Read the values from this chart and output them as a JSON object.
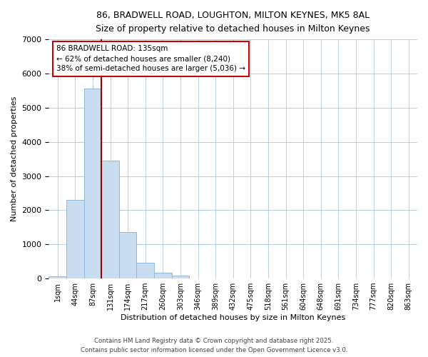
{
  "title_line1": "86, BRADWELL ROAD, LOUGHTON, MILTON KEYNES, MK5 8AL",
  "title_line2": "Size of property relative to detached houses in Milton Keynes",
  "xlabel": "Distribution of detached houses by size in Milton Keynes",
  "ylabel": "Number of detached properties",
  "categories": [
    "1sqm",
    "44sqm",
    "87sqm",
    "131sqm",
    "174sqm",
    "217sqm",
    "260sqm",
    "303sqm",
    "346sqm",
    "389sqm",
    "432sqm",
    "475sqm",
    "518sqm",
    "561sqm",
    "604sqm",
    "648sqm",
    "691sqm",
    "734sqm",
    "777sqm",
    "820sqm",
    "863sqm"
  ],
  "values": [
    60,
    2300,
    5550,
    3450,
    1360,
    460,
    160,
    80,
    0,
    0,
    0,
    0,
    0,
    0,
    0,
    0,
    0,
    0,
    0,
    0,
    0
  ],
  "bar_color": "#c8ddf0",
  "bar_edge_color": "#90b8d8",
  "vline_color": "#990000",
  "vline_x": 2.5,
  "annotation_title": "86 BRADWELL ROAD: 135sqm",
  "annotation_line2": "← 62% of detached houses are smaller (8,240)",
  "annotation_line3": "38% of semi-detached houses are larger (5,036) →",
  "annotation_box_facecolor": "#ffffff",
  "annotation_box_edgecolor": "#cc0000",
  "ylim": [
    0,
    7000
  ],
  "yticks": [
    0,
    1000,
    2000,
    3000,
    4000,
    5000,
    6000,
    7000
  ],
  "background_color": "#ffffff",
  "grid_color": "#b8cfe0",
  "footer_line1": "Contains HM Land Registry data © Crown copyright and database right 2025.",
  "footer_line2": "Contains public sector information licensed under the Open Government Licence v3.0."
}
